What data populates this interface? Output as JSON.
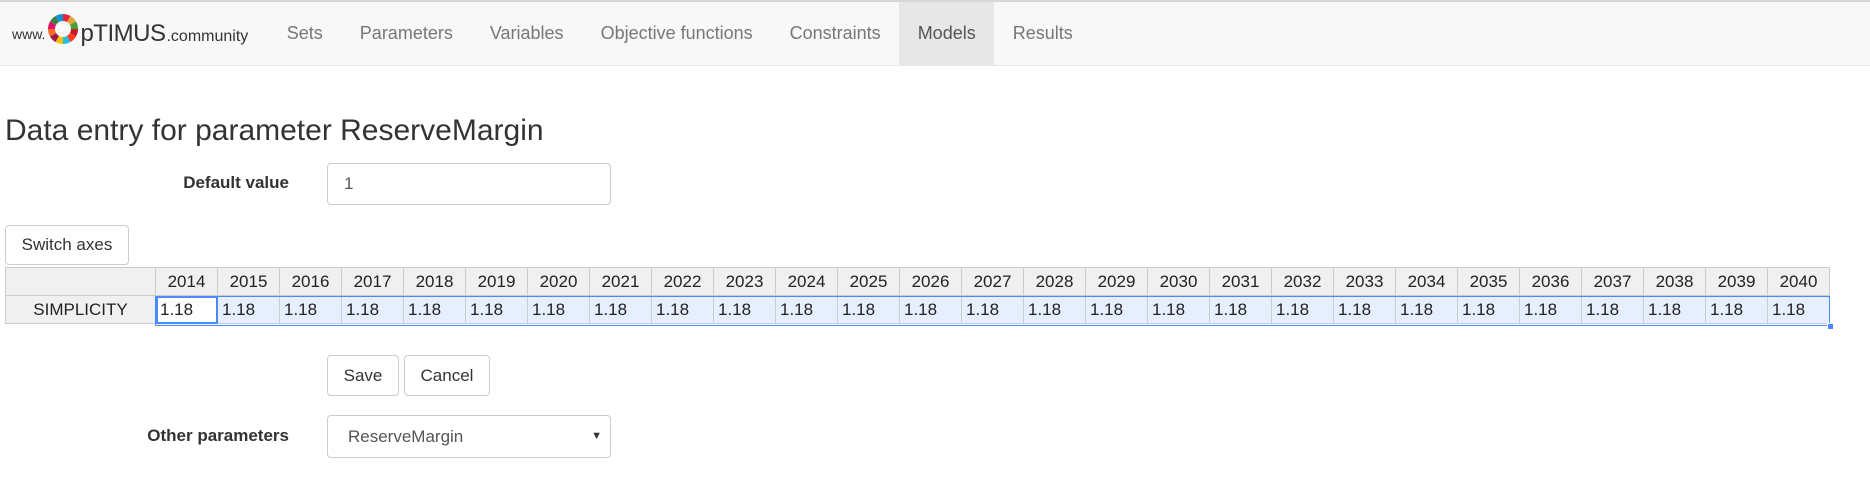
{
  "brand": {
    "prefix": "www.",
    "name": "pTIMUS",
    "suffix": ".community",
    "logo_icon": "sdg-color-wheel-icon"
  },
  "nav": {
    "items": [
      {
        "label": "Sets",
        "active": false
      },
      {
        "label": "Parameters",
        "active": false
      },
      {
        "label": "Variables",
        "active": false
      },
      {
        "label": "Objective functions",
        "active": false
      },
      {
        "label": "Constraints",
        "active": false
      },
      {
        "label": "Models",
        "active": true
      },
      {
        "label": "Results",
        "active": false
      }
    ]
  },
  "page": {
    "title": "Data entry for parameter ReserveMargin"
  },
  "default_value": {
    "label": "Default value",
    "value": "1"
  },
  "buttons": {
    "switch_axes": "Switch axes",
    "save": "Save",
    "cancel": "Cancel"
  },
  "grid": {
    "years": [
      "2014",
      "2015",
      "2016",
      "2017",
      "2018",
      "2019",
      "2020",
      "2021",
      "2022",
      "2023",
      "2024",
      "2025",
      "2026",
      "2027",
      "2028",
      "2029",
      "2030",
      "2031",
      "2032",
      "2033",
      "2034",
      "2035",
      "2036",
      "2037",
      "2038",
      "2039",
      "2040"
    ],
    "rows": [
      {
        "label": "SIMPLICITY",
        "values": [
          "1.18",
          "1.18",
          "1.18",
          "1.18",
          "1.18",
          "1.18",
          "1.18",
          "1.18",
          "1.18",
          "1.18",
          "1.18",
          "1.18",
          "1.18",
          "1.18",
          "1.18",
          "1.18",
          "1.18",
          "1.18",
          "1.18",
          "1.18",
          "1.18",
          "1.18",
          "1.18",
          "1.18",
          "1.18",
          "1.18",
          "1.18"
        ]
      }
    ],
    "selection_color": "#4b89ff"
  },
  "other_parameters": {
    "label": "Other parameters",
    "selected": "ReserveMargin"
  }
}
